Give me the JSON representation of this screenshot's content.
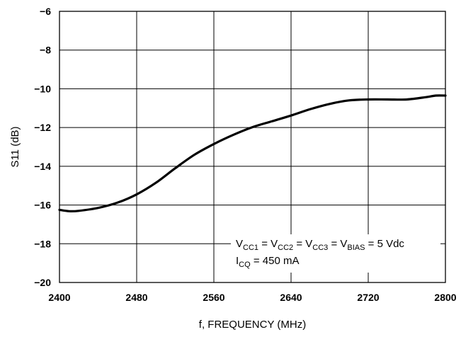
{
  "chart_data": {
    "type": "line",
    "xlabel": "f, FREQUENCY (MHz)",
    "ylabel": "S11 (dB)",
    "xlim": [
      2400,
      2800
    ],
    "ylim": [
      -20,
      -6
    ],
    "x_ticks": [
      2400,
      2480,
      2560,
      2640,
      2720,
      2800
    ],
    "y_ticks": [
      -20,
      -18,
      -16,
      -14,
      -12,
      -10,
      -8,
      -6
    ],
    "grid": true,
    "series": [
      {
        "x": [
          2400,
          2410,
          2420,
          2440,
          2460,
          2480,
          2500,
          2520,
          2540,
          2560,
          2580,
          2600,
          2620,
          2640,
          2660,
          2680,
          2700,
          2720,
          2740,
          2760,
          2780,
          2790,
          2800
        ],
        "y": [
          -16.25,
          -16.32,
          -16.3,
          -16.15,
          -15.88,
          -15.45,
          -14.85,
          -14.1,
          -13.4,
          -12.85,
          -12.38,
          -11.98,
          -11.68,
          -11.38,
          -11.05,
          -10.78,
          -10.6,
          -10.55,
          -10.55,
          -10.55,
          -10.43,
          -10.35,
          -10.35
        ]
      }
    ],
    "annotation": {
      "line1": {
        "v1": "V",
        "s1": "CC1",
        "t1": " = V",
        "s2": "CC2",
        "t2": " = V",
        "s3": "CC3",
        "t3": " = V",
        "s4": "BIAS",
        "t4": " = 5 Vdc"
      },
      "line2": {
        "v": "I",
        "s": "CQ",
        "t": " = 450 mA"
      }
    }
  }
}
